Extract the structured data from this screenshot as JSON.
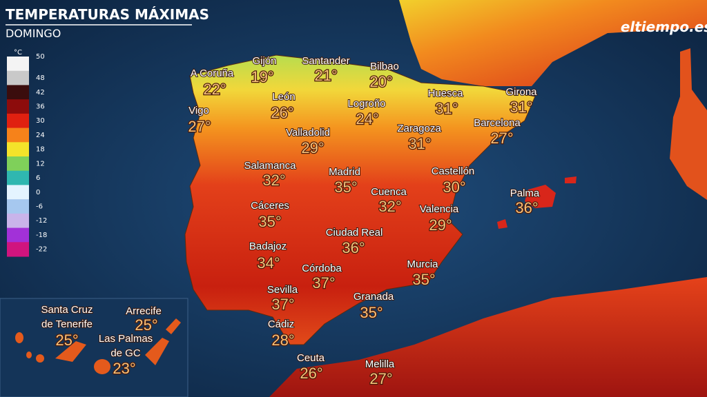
{
  "header": {
    "title": "TEMPERATURAS MÁXIMAS",
    "subtitle": "DOMINGO",
    "logo": "eltiempo.es"
  },
  "legend": {
    "unit": "°C",
    "entries": [
      {
        "label": "50",
        "color": "#f4f4f4"
      },
      {
        "label": "48",
        "color": "#c9c9c9"
      },
      {
        "label": "42",
        "color": "#3b0d0d"
      },
      {
        "label": "36",
        "color": "#8d0c0c"
      },
      {
        "label": "30",
        "color": "#e02010"
      },
      {
        "label": "24",
        "color": "#f6821a"
      },
      {
        "label": "18",
        "color": "#f4e32a"
      },
      {
        "label": "12",
        "color": "#7fd05a"
      },
      {
        "label": "6",
        "color": "#2fb7b0"
      },
      {
        "label": "0",
        "color": "#e4f4ff"
      },
      {
        "label": "-6",
        "color": "#a6c8ef"
      },
      {
        "label": "-12",
        "color": "#c9b4ea"
      },
      {
        "label": "-18",
        "color": "#a231d8"
      },
      {
        "label": "-22",
        "color": "#d0147e"
      }
    ]
  },
  "cities": [
    {
      "name": "A Coruña",
      "temp": "22°"
    },
    {
      "name": "Gijón",
      "temp": "19°"
    },
    {
      "name": "Santander",
      "temp": "21°"
    },
    {
      "name": "Bilbao",
      "temp": "20°"
    },
    {
      "name": "Vigo",
      "temp": "27°"
    },
    {
      "name": "León",
      "temp": "26°"
    },
    {
      "name": "Logroño",
      "temp": "24°"
    },
    {
      "name": "Huesca",
      "temp": "31°"
    },
    {
      "name": "Girona",
      "temp": "31°"
    },
    {
      "name": "Valladolid",
      "temp": "29°"
    },
    {
      "name": "Zaragoza",
      "temp": "31°"
    },
    {
      "name": "Barcelona",
      "temp": "27°"
    },
    {
      "name": "Salamanca",
      "temp": "32°"
    },
    {
      "name": "Madrid",
      "temp": "35°"
    },
    {
      "name": "Castellón",
      "temp": "30°"
    },
    {
      "name": "Cuenca",
      "temp": "32°"
    },
    {
      "name": "Palma",
      "temp": "36°"
    },
    {
      "name": "Cáceres",
      "temp": "35°"
    },
    {
      "name": "Valencia",
      "temp": "29°"
    },
    {
      "name": "Ciudad Real",
      "temp": "36°"
    },
    {
      "name": "Badajoz",
      "temp": "34°"
    },
    {
      "name": "Murcia",
      "temp": "35°"
    },
    {
      "name": "Córdoba",
      "temp": "37°"
    },
    {
      "name": "Sevilla",
      "temp": "37°"
    },
    {
      "name": "Granada",
      "temp": "35°"
    },
    {
      "name": "Cádiz",
      "temp": "28°"
    },
    {
      "name": "Ceuta",
      "temp": "26°"
    },
    {
      "name": "Melilla",
      "temp": "27°"
    }
  ],
  "canarias": [
    {
      "name_lines": [
        "Santa Cruz",
        "de Tenerife"
      ],
      "temp": "25°"
    },
    {
      "name_lines": [
        "Arrecife"
      ],
      "temp": "25°"
    },
    {
      "name_lines": [
        "Las Palmas",
        "de GC"
      ],
      "temp": "23°"
    }
  ]
}
